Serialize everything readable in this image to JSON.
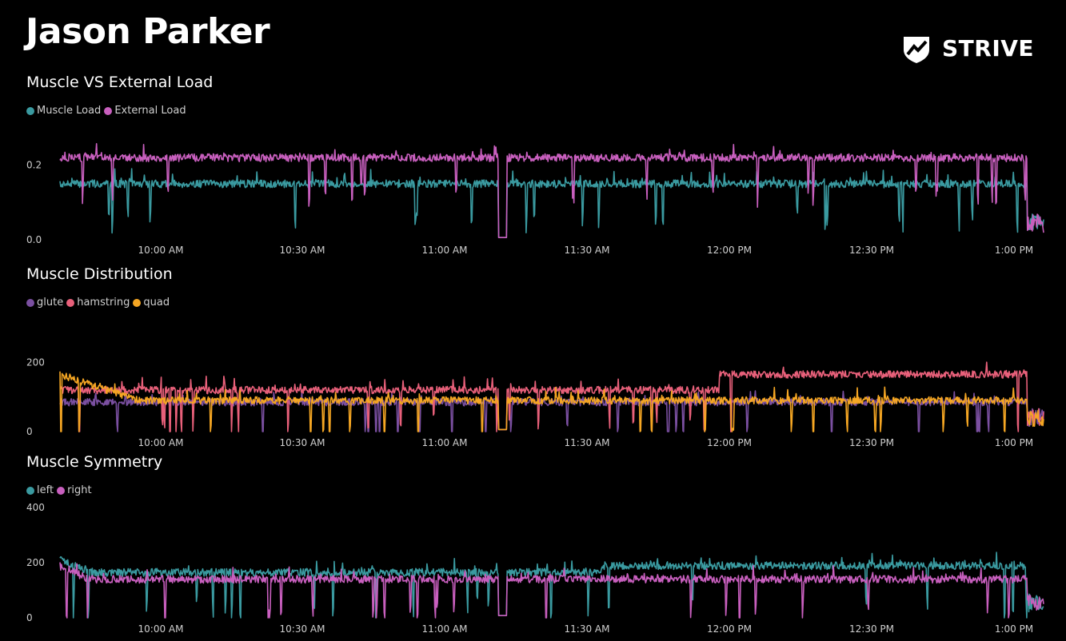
{
  "header": {
    "title": "Jason Parker",
    "logo_text": "STRIVE"
  },
  "colors": {
    "teal": "#3a9aa0",
    "pink": "#c85fbe",
    "purple": "#7a4fa0",
    "red": "#e8607a",
    "orange": "#f5a623"
  },
  "chart_data": [
    {
      "type": "line",
      "title": "Muscle VS External Load",
      "x_ticks": [
        "10:00 AM",
        "10:30 AM",
        "11:00 AM",
        "11:30 AM",
        "12:00 PM",
        "12:30 PM",
        "1:00 PM"
      ],
      "y_ticks": [
        "0.0",
        "0.2"
      ],
      "ylim": [
        0,
        0.3
      ],
      "x_range": [
        "9:38 AM",
        "1:05 PM"
      ],
      "series": [
        {
          "name": "Muscle Load",
          "color": "#3a9aa0",
          "baseline": 0.15
        },
        {
          "name": "External Load",
          "color": "#c85fbe",
          "baseline": 0.22
        }
      ]
    },
    {
      "type": "line",
      "title": "Muscle Distribution",
      "x_ticks": [
        "10:00 AM",
        "10:30 AM",
        "11:00 AM",
        "11:30 AM",
        "12:00 PM",
        "12:30 PM",
        "1:00 PM"
      ],
      "y_ticks": [
        "0",
        "200"
      ],
      "ylim": [
        0,
        300
      ],
      "series": [
        {
          "name": "glute",
          "color": "#7a4fa0",
          "baseline": 85
        },
        {
          "name": "hamstring",
          "color": "#e8607a",
          "baseline": 120
        },
        {
          "name": "quad",
          "color": "#f5a623",
          "baseline": 90
        }
      ]
    },
    {
      "type": "line",
      "title": "Muscle Symmetry",
      "x_ticks": [
        "10:00 AM",
        "10:30 AM",
        "11:00 AM",
        "11:30 AM",
        "12:00 PM",
        "12:30 PM",
        "1:00 PM"
      ],
      "y_ticks": [
        "0",
        "200",
        "400"
      ],
      "ylim": [
        0,
        400
      ],
      "series": [
        {
          "name": "left",
          "color": "#3a9aa0",
          "baseline": 165
        },
        {
          "name": "right",
          "color": "#c85fbe",
          "baseline": 140
        }
      ]
    }
  ]
}
